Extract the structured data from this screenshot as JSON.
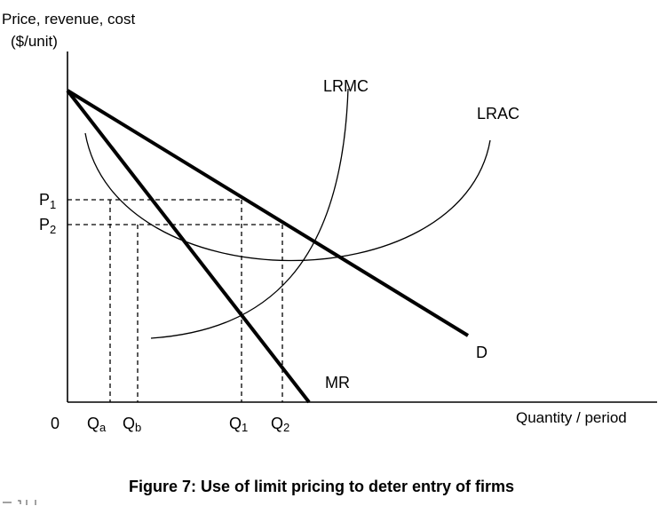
{
  "figure": {
    "y_axis_title_line1": "Price, revenue, cost",
    "y_axis_title_line2": "($/unit)",
    "x_axis_title": "Quantity / period",
    "origin_label": "0",
    "caption": "Figure 7: Use of limit pricing to deter entry of firms"
  },
  "curves": {
    "lrmc": "LRMC",
    "lrac": "LRAC",
    "demand": "D",
    "mr": "MR"
  },
  "price_labels": [
    {
      "main": "P",
      "sub": "1"
    },
    {
      "main": "P",
      "sub": "2"
    }
  ],
  "quantity_labels": [
    {
      "main": "Q",
      "sub": "a"
    },
    {
      "main": "Q",
      "sub": "b"
    },
    {
      "main": "Q",
      "sub": "1"
    },
    {
      "main": "Q",
      "sub": "2"
    }
  ],
  "colors": {
    "ink": "#000000",
    "background": "#ffffff"
  }
}
